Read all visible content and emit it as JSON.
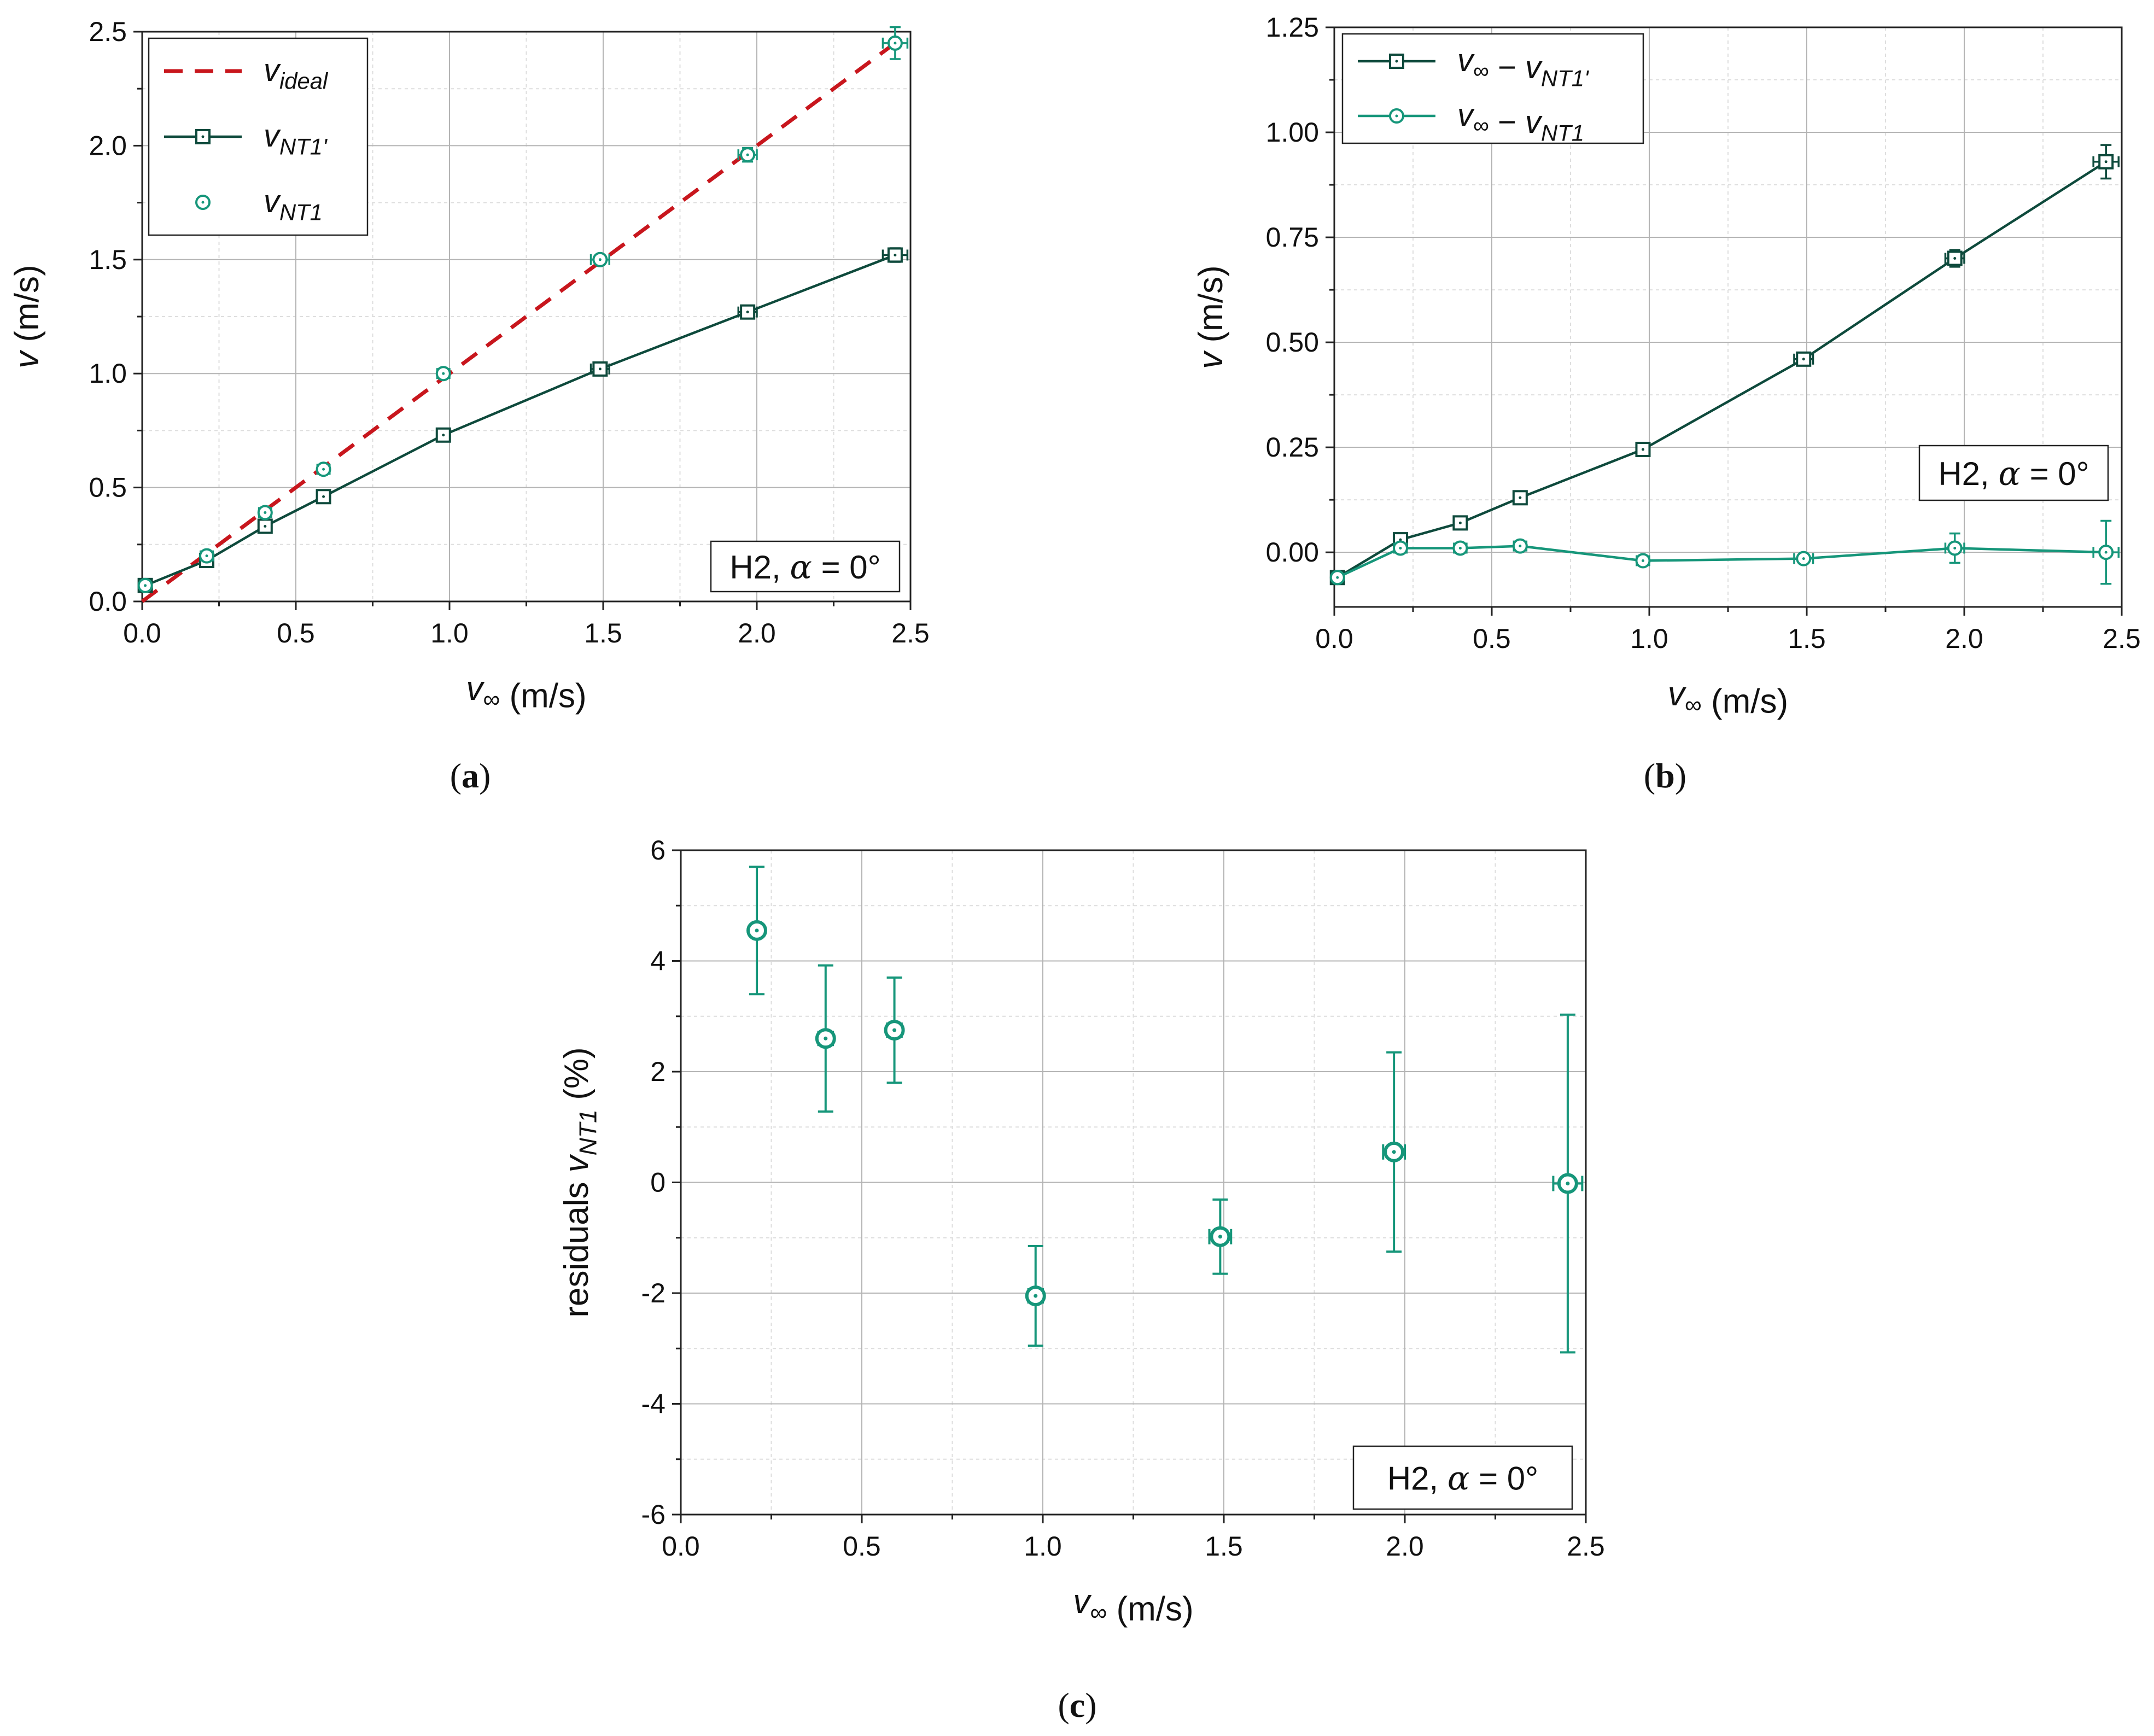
{
  "colors": {
    "dark": "#0e4a3c",
    "teal": "#16967a",
    "ideal": "#c8161d",
    "grid": "#b4b4b4",
    "minor": "#dedede"
  },
  "chart_data": [
    {
      "id": "a",
      "type": "line",
      "caption": "(a)",
      "note": "H2, α = 0°",
      "xlabel": "v∞ (m/s)",
      "ylabel": "v (m/s)",
      "xlim": [
        0,
        2.5
      ],
      "ylim": [
        0,
        2.5
      ],
      "xticks": [
        "0.0",
        "0.5",
        "1.0",
        "1.5",
        "2.0",
        "2.5"
      ],
      "yticks": [
        "0.0",
        "0.5",
        "1.0",
        "1.5",
        "2.0",
        "2.5"
      ],
      "legend": [
        "v_ideal",
        "v_NT1'",
        "v_NT1"
      ],
      "series": [
        {
          "name": "v_ideal",
          "style": "dash",
          "x": [
            0,
            2.45
          ],
          "y": [
            0,
            2.45
          ]
        },
        {
          "name": "v_NT1'",
          "style": "line-square",
          "x": [
            0.01,
            0.21,
            0.4,
            0.59,
            0.98,
            1.49,
            1.97,
            2.45
          ],
          "y": [
            0.07,
            0.18,
            0.33,
            0.46,
            0.73,
            1.02,
            1.27,
            1.52
          ],
          "xerr": [
            0.005,
            0.02,
            0.02,
            0.02,
            0.02,
            0.03,
            0.03,
            0.04
          ],
          "yerr": [
            0.01,
            0.01,
            0.01,
            0.01,
            0.01,
            0.01,
            0.02,
            0.03
          ]
        },
        {
          "name": "v_NT1",
          "style": "circle",
          "x": [
            0.01,
            0.21,
            0.4,
            0.59,
            0.98,
            1.49,
            1.97,
            2.45
          ],
          "y": [
            0.07,
            0.2,
            0.39,
            0.58,
            1.0,
            1.5,
            1.96,
            2.45
          ],
          "xerr": [
            0.005,
            0.02,
            0.02,
            0.02,
            0.02,
            0.03,
            0.03,
            0.04
          ],
          "yerr": [
            0.01,
            0.02,
            0.02,
            0.02,
            0.02,
            0.02,
            0.03,
            0.07
          ]
        }
      ]
    },
    {
      "id": "b",
      "type": "line",
      "caption": "(b)",
      "note": "H2, α = 0°",
      "xlabel": "v∞ (m/s)",
      "ylabel": "v (m/s)",
      "xlim": [
        0,
        2.5
      ],
      "ylim": [
        -0.13,
        1.25
      ],
      "xticks": [
        "0.0",
        "0.5",
        "1.0",
        "1.5",
        "2.0",
        "2.5"
      ],
      "yticks": [
        "0.00",
        "0.25",
        "0.50",
        "0.75",
        "1.00",
        "1.25"
      ],
      "legend": [
        "v∞ − v_NT1'",
        "v∞ − v_NT1"
      ],
      "series": [
        {
          "name": "v∞ − v_NT1'",
          "style": "line-square",
          "x": [
            0.01,
            0.21,
            0.4,
            0.59,
            0.98,
            1.49,
            1.97,
            2.45
          ],
          "y": [
            -0.06,
            0.03,
            0.07,
            0.13,
            0.245,
            0.46,
            0.7,
            0.93
          ],
          "xerr": [
            0.005,
            0.02,
            0.02,
            0.02,
            0.02,
            0.03,
            0.03,
            0.04
          ],
          "yerr": [
            0.01,
            0.01,
            0.01,
            0.01,
            0.01,
            0.01,
            0.02,
            0.04
          ]
        },
        {
          "name": "v∞ − v_NT1",
          "style": "line-circle",
          "x": [
            0.01,
            0.21,
            0.4,
            0.59,
            0.98,
            1.49,
            1.97,
            2.45
          ],
          "y": [
            -0.06,
            0.01,
            0.01,
            0.015,
            -0.02,
            -0.015,
            0.01,
            0.0
          ],
          "xerr": [
            0.005,
            0.02,
            0.02,
            0.02,
            0.02,
            0.03,
            0.03,
            0.04
          ],
          "yerr": [
            0.01,
            0.01,
            0.01,
            0.01,
            0.01,
            0.01,
            0.035,
            0.075
          ]
        }
      ]
    },
    {
      "id": "c",
      "type": "scatter",
      "caption": "(c)",
      "note": "H2, α = 0°",
      "xlabel": "v∞ (m/s)",
      "ylabel": "residuals v_NT1 (%)",
      "xlim": [
        0,
        2.5
      ],
      "ylim": [
        -6,
        6
      ],
      "xticks": [
        "0.0",
        "0.5",
        "1.0",
        "1.5",
        "2.0",
        "2.5"
      ],
      "yticks": [
        "-6",
        "-4",
        "-2",
        "0",
        "2",
        "4",
        "6"
      ],
      "series": [
        {
          "name": "residuals v_NT1",
          "style": "circle-bold",
          "x": [
            0.21,
            0.4,
            0.59,
            0.98,
            1.49,
            1.97,
            2.45
          ],
          "y": [
            4.55,
            2.6,
            2.75,
            -2.05,
            -0.98,
            0.55,
            -0.02
          ],
          "xerr": [
            0.015,
            0.02,
            0.02,
            0.02,
            0.03,
            0.03,
            0.04
          ],
          "yerr": [
            1.15,
            1.32,
            0.95,
            0.9,
            0.67,
            1.8,
            3.05
          ]
        }
      ]
    }
  ]
}
